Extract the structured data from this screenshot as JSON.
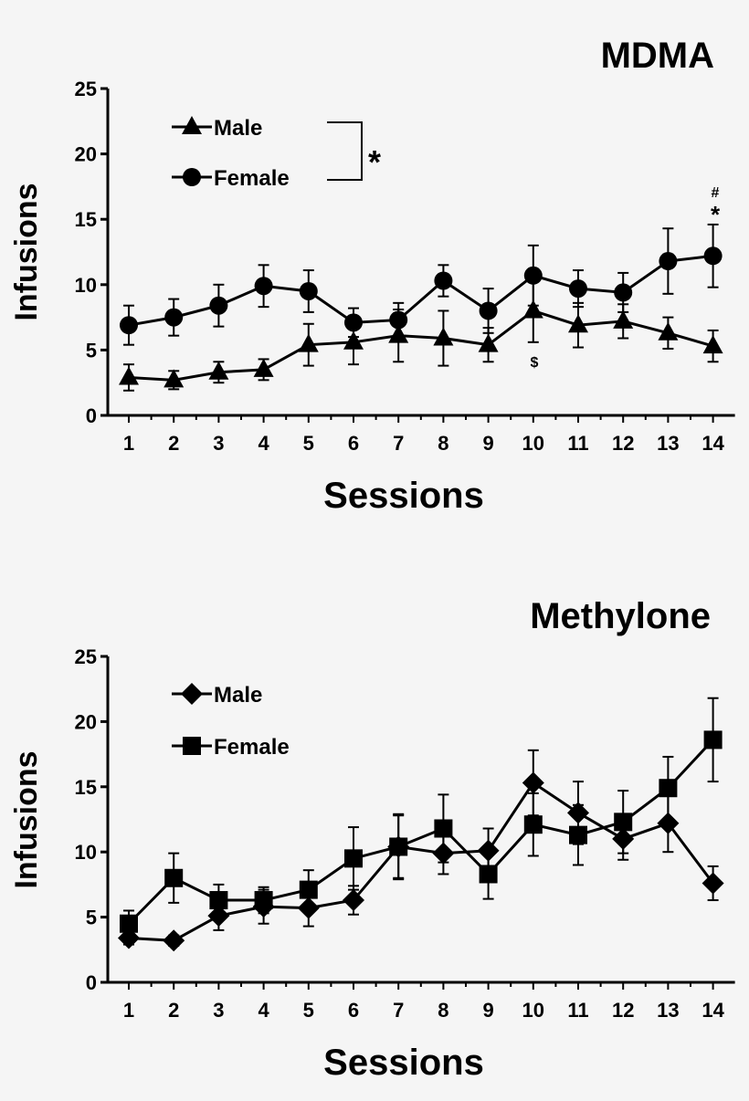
{
  "chart_data": [
    {
      "type": "line",
      "title": "MDMA",
      "xlabel": "Sessions",
      "ylabel": "Infusions",
      "ylim": [
        0,
        25
      ],
      "yticks": [
        "0",
        "5",
        "10",
        "15",
        "20",
        "25"
      ],
      "categories": [
        "1",
        "2",
        "3",
        "4",
        "5",
        "6",
        "7",
        "8",
        "9",
        "10",
        "11",
        "12",
        "13",
        "14"
      ],
      "series": [
        {
          "name": "Male",
          "marker": "triangle",
          "values": [
            2.9,
            2.7,
            3.3,
            3.5,
            5.4,
            5.6,
            6.1,
            5.9,
            5.4,
            8.0,
            6.9,
            7.2,
            6.3,
            5.3
          ],
          "err": [
            1.0,
            0.7,
            0.8,
            0.8,
            1.6,
            1.7,
            2.0,
            2.1,
            1.3,
            2.4,
            1.7,
            1.3,
            1.2,
            1.2
          ]
        },
        {
          "name": "Female",
          "marker": "circle",
          "values": [
            6.9,
            7.5,
            8.4,
            9.9,
            9.5,
            7.1,
            7.3,
            10.3,
            8.0,
            10.7,
            9.7,
            9.4,
            11.8,
            12.2
          ],
          "err": [
            1.5,
            1.4,
            1.6,
            1.6,
            1.6,
            1.1,
            1.3,
            1.2,
            1.7,
            2.3,
            1.4,
            1.5,
            2.5,
            2.4
          ]
        }
      ],
      "legend_bracket_mark": "*",
      "annotations": [
        {
          "label": "$",
          "session": "10"
        },
        {
          "label": "#",
          "session": "14"
        },
        {
          "label": "*",
          "session": "14"
        }
      ]
    },
    {
      "type": "line",
      "title": "Methylone",
      "xlabel": "Sessions",
      "ylabel": "Infusions",
      "ylim": [
        0,
        25
      ],
      "yticks": [
        "0",
        "5",
        "10",
        "15",
        "20",
        "25"
      ],
      "categories": [
        "1",
        "2",
        "3",
        "4",
        "5",
        "6",
        "7",
        "8",
        "9",
        "10",
        "11",
        "12",
        "13",
        "14"
      ],
      "series": [
        {
          "name": "Male",
          "marker": "diamond",
          "values": [
            3.4,
            3.2,
            5.1,
            5.8,
            5.7,
            6.3,
            10.4,
            9.9,
            10.1,
            15.3,
            13.0,
            11.0,
            12.2,
            7.6
          ],
          "err": [
            0.5,
            0.4,
            1.1,
            1.3,
            1.4,
            1.1,
            2.4,
            1.6,
            1.7,
            2.5,
            2.4,
            1.6,
            2.2,
            1.3
          ]
        },
        {
          "name": "Female",
          "marker": "square",
          "values": [
            4.5,
            8.0,
            6.3,
            6.3,
            7.1,
            9.5,
            10.4,
            11.8,
            8.3,
            12.1,
            11.3,
            12.3,
            14.9,
            18.6
          ],
          "err": [
            1.0,
            1.9,
            1.2,
            1.0,
            1.5,
            2.4,
            2.5,
            2.6,
            1.9,
            2.4,
            2.3,
            2.4,
            2.4,
            3.2
          ]
        }
      ]
    }
  ]
}
